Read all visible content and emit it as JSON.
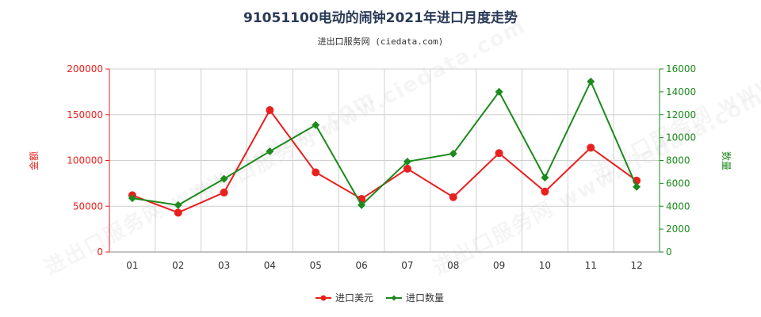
{
  "title": "91051100电动的闹钟2021年进口月度走势",
  "subtitle": "进出口服务网 (ciedata.com)",
  "watermark": "进出口服务网 www.ciedata.com",
  "colors": {
    "amount": "#e8201e",
    "quantity": "#1c8a1c",
    "grid": "#d0d0d0"
  },
  "chart_data": {
    "type": "line",
    "categories": [
      "01",
      "02",
      "03",
      "04",
      "05",
      "06",
      "07",
      "08",
      "09",
      "10",
      "11",
      "12"
    ],
    "y_left": {
      "label": "金额",
      "ylim": [
        0,
        200000
      ],
      "ticks": [
        0,
        50000,
        100000,
        150000,
        200000
      ]
    },
    "y_right": {
      "label": "数量",
      "ylim": [
        0,
        16000
      ],
      "ticks": [
        0,
        2000,
        4000,
        6000,
        8000,
        10000,
        12000,
        14000,
        16000
      ]
    },
    "series": [
      {
        "name": "进口美元",
        "axis": "left",
        "marker": "circle",
        "values": [
          62000,
          43000,
          65000,
          155000,
          87000,
          58000,
          91000,
          60000,
          108000,
          66000,
          114000,
          78000
        ]
      },
      {
        "name": "进口数量",
        "axis": "right",
        "marker": "diamond",
        "values": [
          4700,
          4100,
          6400,
          8800,
          11100,
          4100,
          7900,
          8600,
          14000,
          6500,
          14900,
          5700
        ]
      }
    ],
    "grid": true,
    "legend": "bottom-center"
  }
}
